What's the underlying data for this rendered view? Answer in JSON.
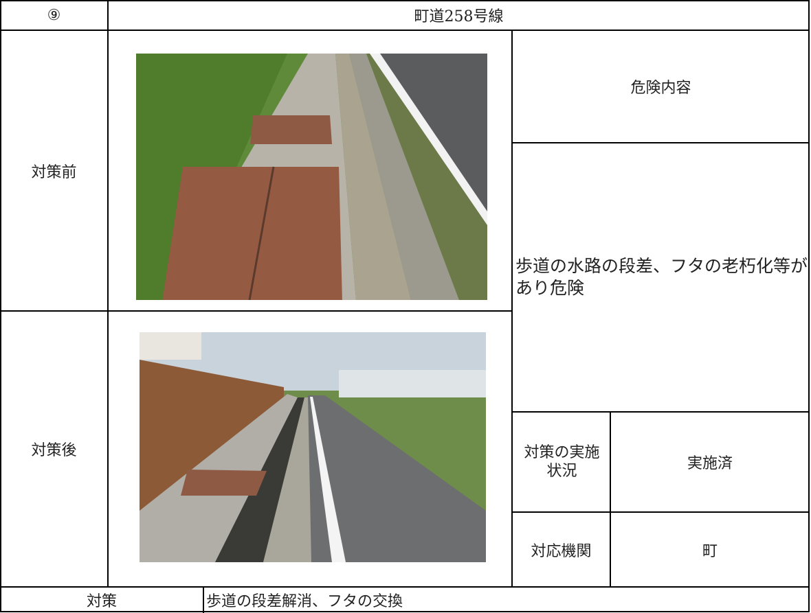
{
  "header": {
    "number": "⑨",
    "route": "町道258号線"
  },
  "rows": {
    "before": "対策前",
    "after": "対策後"
  },
  "hazard": {
    "label": "危険内容",
    "text": "歩道の水路の段差、フタの老朽化等があり危険"
  },
  "status": {
    "label": "対策の実施状況",
    "value": "実施済"
  },
  "agency": {
    "label": "対応機関",
    "value": "町"
  },
  "measures": {
    "label": "対策",
    "text": "歩道の段差解消、フタの交換"
  }
}
